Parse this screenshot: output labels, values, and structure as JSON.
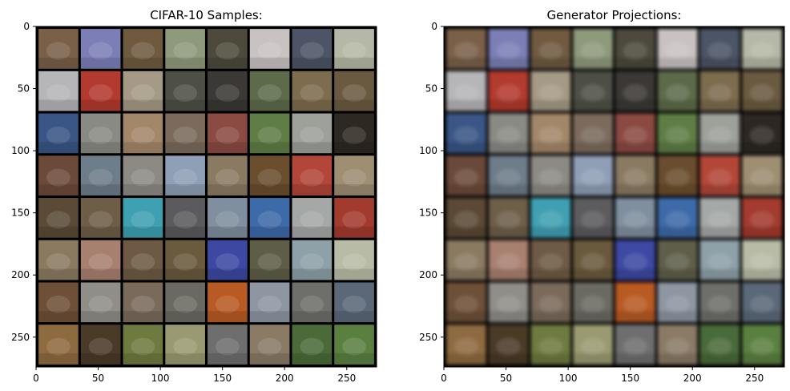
{
  "figure": {
    "panels": [
      {
        "id": "left",
        "title": "CIFAR-10 Samples:",
        "x_ticks": [
          "0",
          "50",
          "100",
          "150",
          "200",
          "250"
        ],
        "y_ticks": [
          "0",
          "50",
          "100",
          "150",
          "200",
          "250"
        ],
        "grid_rows": 8,
        "grid_cols": 8,
        "style": "sharp"
      },
      {
        "id": "right",
        "title": "Generator Projections:",
        "x_ticks": [
          "0",
          "50",
          "100",
          "150",
          "200",
          "250"
        ],
        "y_ticks": [
          "0",
          "50",
          "100",
          "150",
          "200",
          "250"
        ],
        "grid_rows": 8,
        "grid_cols": 8,
        "style": "blurred"
      }
    ],
    "tile_colors": [
      [
        "#7a6048",
        "#7b7fb6",
        "#6f5a40",
        "#8f9a7c",
        "#4d4a3c",
        "#c9c2c2",
        "#4c5466",
        "#b5b8a6"
      ],
      [
        "#b6b5b8",
        "#b33a2e",
        "#a59a86",
        "#4e5046",
        "#3b3835",
        "#5d6b4a",
        "#7d6c4e",
        "#6a5a40"
      ],
      [
        "#3a5686",
        "#8a8a84",
        "#a38769",
        "#7c6a5d",
        "#8b4a42",
        "#5f7e45",
        "#9ea09a",
        "#2e2822"
      ],
      [
        "#6b4a3a",
        "#6e7d8a",
        "#8d8a84",
        "#8f9fb6",
        "#8a7a62",
        "#6a4e2e",
        "#b24638",
        "#9e8e72"
      ],
      [
        "#5b4a36",
        "#6e5e48",
        "#3fa0b2",
        "#5b5b5e",
        "#7f8f9f",
        "#3d6aa8",
        "#a4a8a6",
        "#a33a2e"
      ],
      [
        "#8a7a60",
        "#a88070",
        "#6e5a44",
        "#6a5a3e",
        "#3c48a2",
        "#5e5e48",
        "#8ea0a8",
        "#b8bca6"
      ],
      [
        "#6e5038",
        "#8f8e88",
        "#7a6a5a",
        "#6a6a62",
        "#b85a24",
        "#8e96a2",
        "#6e6e6a",
        "#5a6878"
      ],
      [
        "#8e6a40",
        "#4a3a28",
        "#6e7a40",
        "#9a9a72",
        "#6e6e6e",
        "#8a7a66",
        "#4a6a3a",
        "#5a8040"
      ]
    ]
  }
}
